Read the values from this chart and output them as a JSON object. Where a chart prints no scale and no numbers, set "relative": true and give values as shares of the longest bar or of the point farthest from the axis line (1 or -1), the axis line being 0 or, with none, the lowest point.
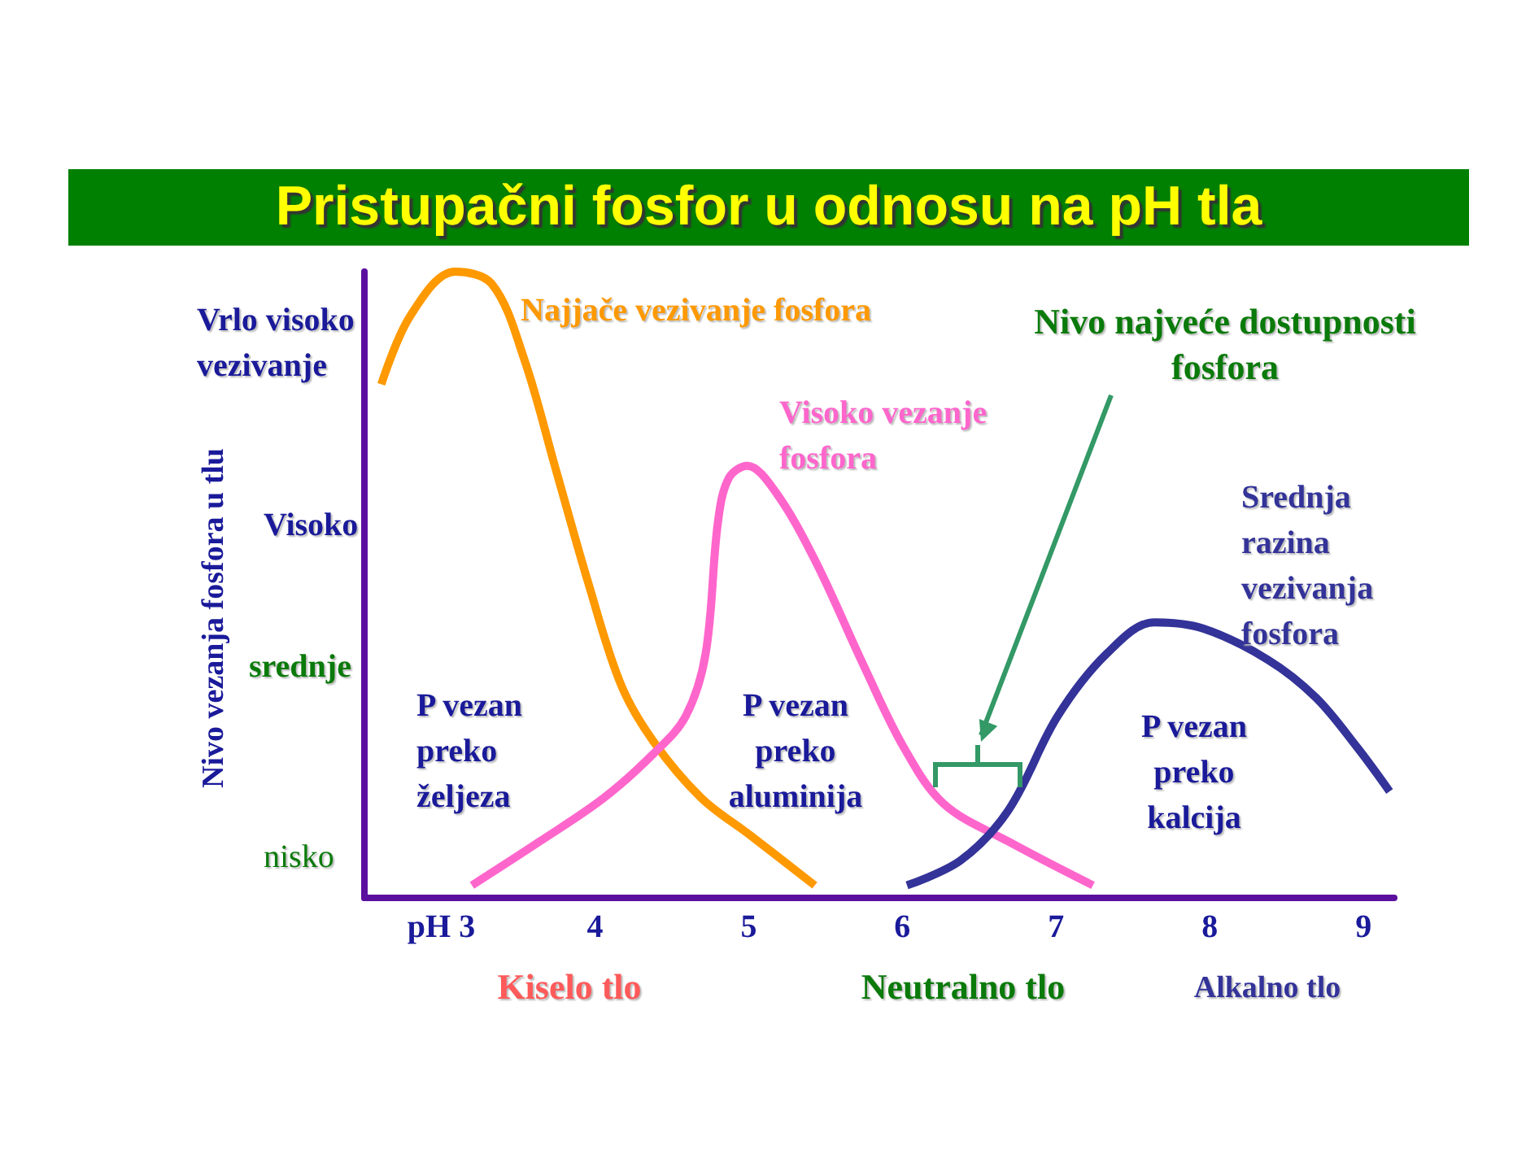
{
  "chart_data": {
    "type": "line",
    "title": "Pristupačni fosfor u odnosu na pH tla",
    "ylabel": "Nivo vezanja fosfora u tlu",
    "relative": true,
    "xlim": [
      2.5,
      9.2
    ],
    "xticks": [
      {
        "value": 3,
        "label": "pH 3"
      },
      4,
      5,
      6,
      7,
      8,
      9
    ],
    "series": [
      {
        "name": "Najjače vezivanje fosfora",
        "color": "#ff9900",
        "x": [
          2.61,
          2.8,
          3.09,
          3.33,
          3.54,
          3.75,
          3.96,
          4.17,
          4.38,
          4.69,
          5.01,
          5.43
        ],
        "values": [
          0.82,
          0.93,
          1.0,
          0.98,
          0.86,
          0.68,
          0.5,
          0.34,
          0.25,
          0.16,
          0.1,
          0.02
        ]
      },
      {
        "name": "Visoko vezanje fosfora",
        "color": "#ff66cc",
        "x": [
          3.2,
          3.64,
          4.06,
          4.38,
          4.59,
          4.72,
          4.8,
          4.87,
          4.99,
          5.17,
          5.43,
          5.75,
          6.01,
          6.27,
          6.69,
          7.24
        ],
        "values": [
          0.02,
          0.09,
          0.16,
          0.23,
          0.29,
          0.39,
          0.6,
          0.67,
          0.69,
          0.65,
          0.54,
          0.37,
          0.24,
          0.15,
          0.09,
          0.02
        ]
      },
      {
        "name": "Srednja razina vezivanja fosfora",
        "color": "#333399",
        "x": [
          6.03,
          6.38,
          6.69,
          7.01,
          7.33,
          7.64,
          7.96,
          8.38,
          8.69,
          8.96,
          9.17
        ],
        "values": [
          0.02,
          0.06,
          0.14,
          0.29,
          0.39,
          0.44,
          0.43,
          0.38,
          0.32,
          0.24,
          0.17
        ]
      }
    ],
    "annotations": [
      "Nivo najveće dostupnosti fosfora",
      "P vezan preko željeza",
      "P vezan preko aluminija",
      "P vezan preko kalcija",
      "Vrlo visoko vezivanje",
      "Visoko",
      "srednje",
      "nisko",
      "Kiselo tlo",
      "Neutralno tlo",
      "Alkalno tlo"
    ],
    "legend": false,
    "marker": "none",
    "line_style": "solid"
  }
}
